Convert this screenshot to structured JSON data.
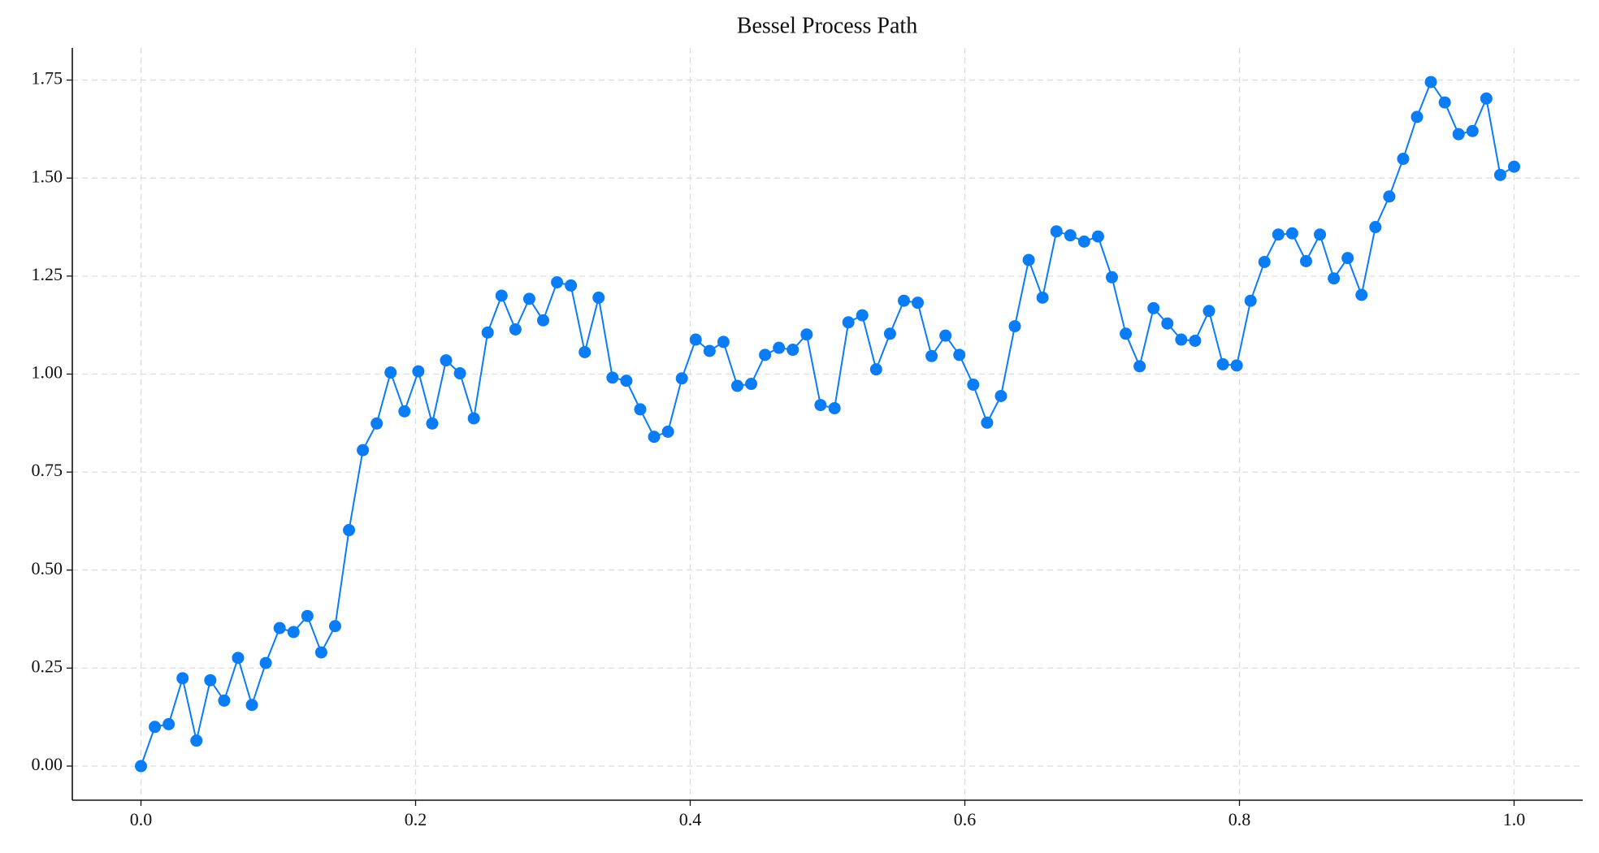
{
  "chart_data": {
    "type": "line",
    "title": "Bessel Process Path",
    "x": [
      0,
      0.0101,
      0.0202,
      0.0303,
      0.0404,
      0.0505,
      0.0606,
      0.0707,
      0.0808,
      0.0909,
      0.101,
      0.1111,
      0.1212,
      0.1313,
      0.1414,
      0.1515,
      0.1616,
      0.1717,
      0.1818,
      0.1919,
      0.202,
      0.2121,
      0.2222,
      0.2323,
      0.2424,
      0.2525,
      0.2626,
      0.2727,
      0.2828,
      0.2929,
      0.303,
      0.3131,
      0.3232,
      0.3333,
      0.3434,
      0.3535,
      0.3636,
      0.3737,
      0.3838,
      0.3939,
      0.404,
      0.4141,
      0.4242,
      0.4343,
      0.4444,
      0.4545,
      0.4646,
      0.4747,
      0.4848,
      0.4949,
      0.5051,
      0.5152,
      0.5253,
      0.5354,
      0.5455,
      0.5556,
      0.5657,
      0.5758,
      0.5859,
      0.596,
      0.6061,
      0.6162,
      0.6263,
      0.6364,
      0.6465,
      0.6566,
      0.6667,
      0.6768,
      0.6869,
      0.697,
      0.7071,
      0.7172,
      0.7273,
      0.7374,
      0.7475,
      0.7576,
      0.7677,
      0.7778,
      0.7879,
      0.798,
      0.8081,
      0.8182,
      0.8283,
      0.8384,
      0.8485,
      0.8586,
      0.8687,
      0.8788,
      0.8889,
      0.899,
      0.9091,
      0.9192,
      0.9293,
      0.9394,
      0.9495,
      0.9596,
      0.9697,
      0.9798,
      0.9899,
      1
    ],
    "series": [
      {
        "color": "#0a7cf5",
        "values": [
          0,
          0.1,
          0.107,
          0.224,
          0.065,
          0.219,
          0.167,
          0.276,
          0.156,
          0.263,
          0.352,
          0.342,
          0.383,
          0.29,
          0.357,
          0.602,
          0.806,
          0.874,
          1.004,
          0.905,
          1.007,
          0.874,
          1.035,
          1.002,
          0.887,
          1.106,
          1.2,
          1.114,
          1.192,
          1.137,
          1.234,
          1.226,
          1.056,
          1.195,
          0.991,
          0.983,
          0.91,
          0.84,
          0.853,
          0.989,
          1.088,
          1.059,
          1.082,
          0.97,
          0.975,
          1.049,
          1.067,
          1.062,
          1.101,
          0.921,
          0.913,
          1.132,
          1.15,
          1.012,
          1.103,
          1.187,
          1.182,
          1.046,
          1.098,
          1.049,
          0.973,
          0.876,
          0.944,
          1.122,
          1.291,
          1.195,
          1.364,
          1.354,
          1.338,
          1.351,
          1.247,
          1.103,
          1.02,
          1.168,
          1.129,
          1.088,
          1.085,
          1.161,
          1.025,
          1.022,
          1.187,
          1.286,
          1.356,
          1.359,
          1.288,
          1.356,
          1.244,
          1.296,
          1.202,
          1.375,
          1.453,
          1.549,
          1.656,
          1.745,
          1.693,
          1.612,
          1.62,
          1.703,
          1.508,
          1.529
        ]
      }
    ],
    "xlim": [
      -0.05,
      1.05
    ],
    "xticks": [
      {
        "value": 0,
        "label": "0.0"
      },
      0.2,
      0.4,
      0.6,
      0.8,
      {
        "value": 1,
        "label": "1.0"
      }
    ],
    "ylim": [
      -0.087,
      1.832
    ],
    "yticks": [
      {
        "value": 0,
        "label": "0.00"
      },
      0.25,
      {
        "value": 0.5,
        "label": "0.50"
      },
      0.75,
      {
        "value": 1,
        "label": "1.00"
      },
      1.25,
      {
        "value": 1.5,
        "label": "1.50"
      },
      1.75
    ],
    "grid": true,
    "markers": true
  }
}
